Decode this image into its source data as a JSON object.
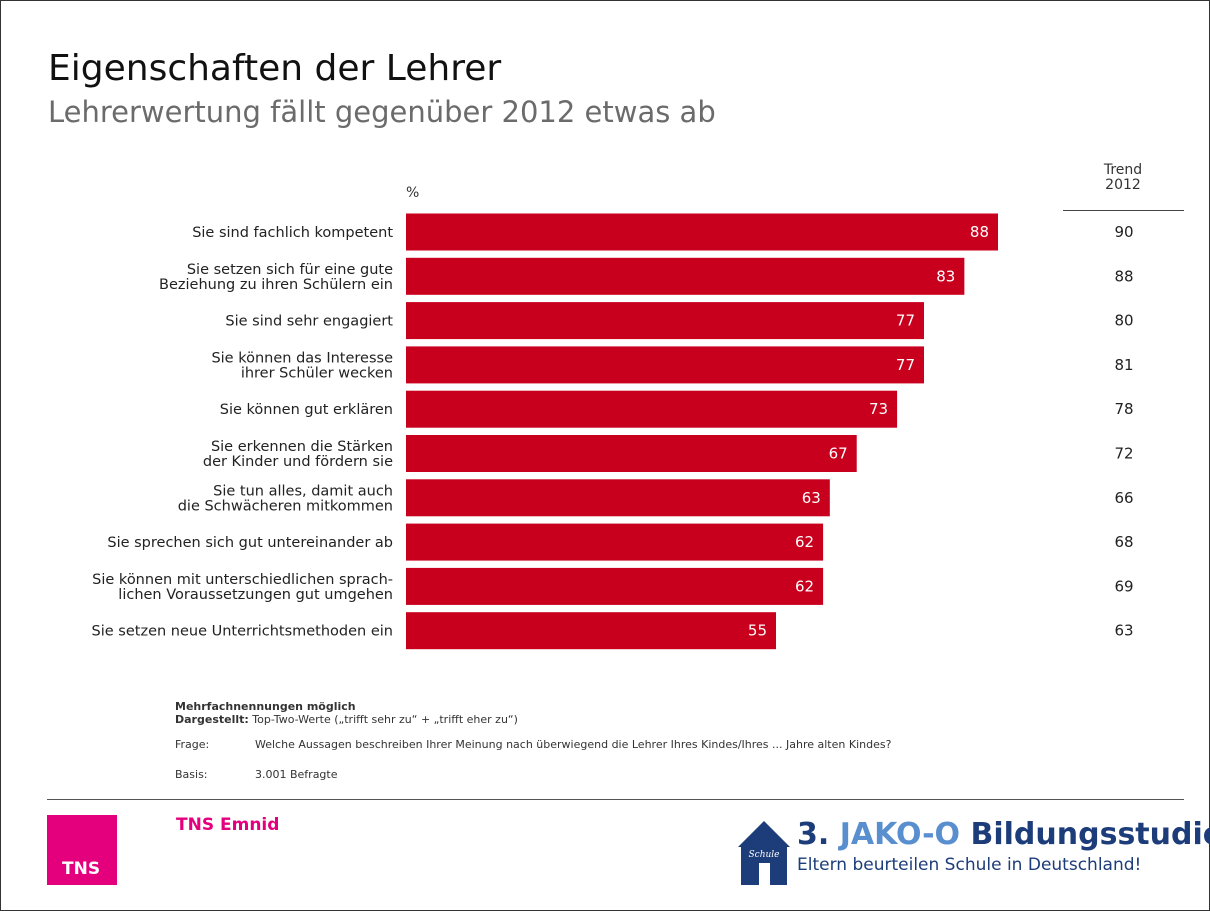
{
  "title": "Eigenschaften der Lehrer",
  "subtitle": "Lehrerwertung fällt gegenüber 2012 etwas ab",
  "chart_data": {
    "type": "bar",
    "orientation": "horizontal",
    "unit_label": "%",
    "bar_color": "#c8001e",
    "value_label_color": "#ffffff",
    "xlim": [
      0,
      100
    ],
    "categories": [
      [
        "Sie sind fachlich kompetent"
      ],
      [
        "Sie setzen sich für eine gute",
        "Beziehung zu ihren Schülern ein"
      ],
      [
        "Sie sind sehr engagiert"
      ],
      [
        "Sie können das Interesse",
        "ihrer Schüler wecken"
      ],
      [
        "Sie können gut erklären"
      ],
      [
        "Sie erkennen die Stärken",
        "der Kinder und fördern sie"
      ],
      [
        "Sie tun alles, damit auch",
        "die Schwächeren mitkommen"
      ],
      [
        "Sie sprechen sich gut untereinander ab"
      ],
      [
        "Sie können mit unterschiedlichen sprach-",
        "lichen Voraussetzungen gut umgehen"
      ],
      [
        "Sie setzen neue Unterrichtsmethoden ein"
      ]
    ],
    "values": [
      88,
      83,
      77,
      77,
      73,
      67,
      63,
      62,
      62,
      55
    ],
    "trend": {
      "header": [
        "Trend",
        "2012"
      ],
      "values": [
        90,
        88,
        80,
        81,
        78,
        72,
        66,
        68,
        69,
        63
      ]
    }
  },
  "notes": {
    "multi": "Mehrfachnennungen möglich",
    "shown_label": "Dargestellt:",
    "shown_text": "Top-Two-Werte („trifft sehr zu“ + „trifft eher zu“)",
    "question_label": "Frage:",
    "question_text": "Welche Aussagen beschreiben Ihrer Meinung nach überwiegend die Lehrer Ihres Kindes/Ihres ... Jahre alten Kindes?",
    "base_label": "Basis:",
    "base_text": "3.001 Befragte"
  },
  "footer": {
    "tns_logo_text": "TNS",
    "tns_name": "TNS Emnid",
    "tns_color": "#e4007c",
    "study_number": "3.",
    "study_brand": "JAKO-O",
    "study_word": "Bildungsstudie",
    "study_tagline": "Eltern beurteilen Schule in Deutschland!",
    "house_text": "Schule"
  }
}
